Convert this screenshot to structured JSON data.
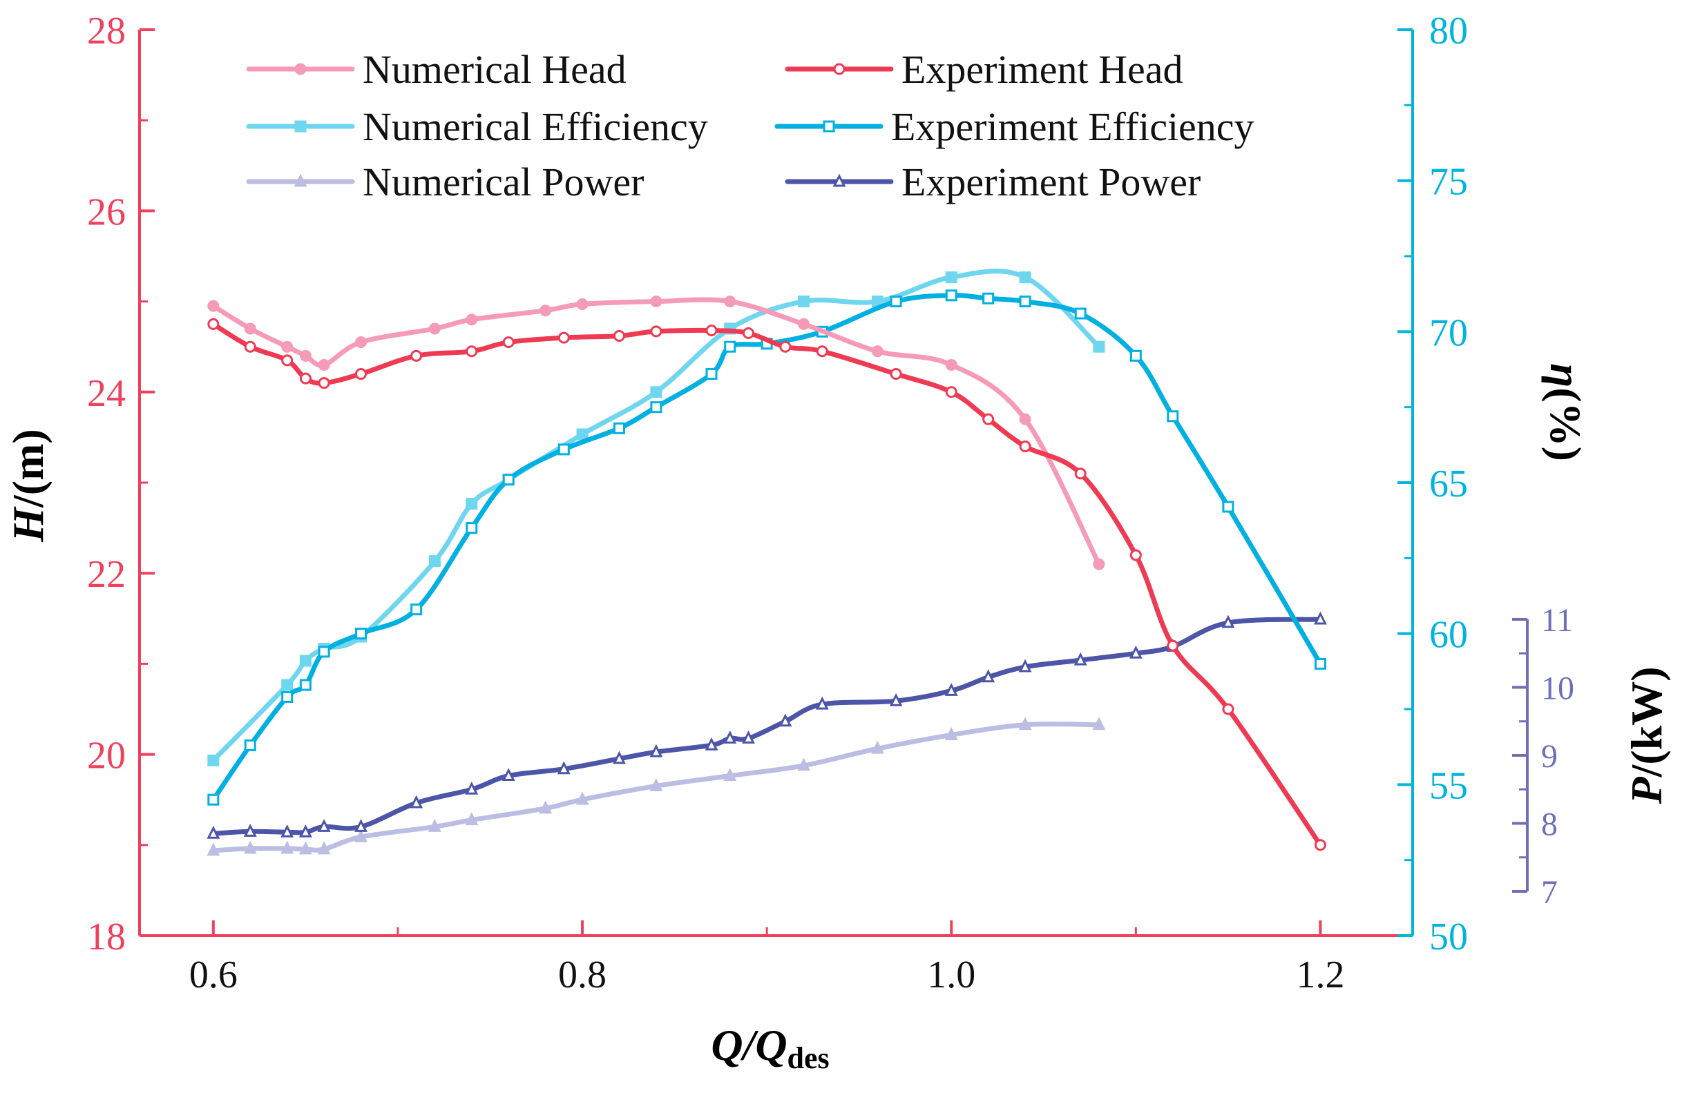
{
  "chart_data": {
    "type": "line",
    "title": "",
    "xlabel": {
      "main": "Q/Q",
      "sub": "des"
    },
    "x_axis": {
      "range": [
        0.56,
        1.25
      ],
      "ticks": [
        0.6,
        0.8,
        1.0,
        1.2
      ],
      "tick_labels": [
        "0.6",
        "0.8",
        "1.0",
        "1.2"
      ]
    },
    "y_left": {
      "label_italic": "H",
      "label_rest": "/(m)",
      "range": [
        18,
        28
      ],
      "ticks": [
        18,
        20,
        22,
        24,
        26,
        28
      ],
      "tick_labels": [
        "18",
        "20",
        "22",
        "24",
        "26",
        "28"
      ],
      "color": "#f0415c"
    },
    "y_right": {
      "label_italic": "η",
      "label_rest": "(%)",
      "range": [
        50,
        80
      ],
      "ticks": [
        50,
        55,
        60,
        65,
        70,
        75,
        80
      ],
      "tick_labels": [
        "50",
        "55",
        "60",
        "65",
        "70",
        "75",
        "80"
      ],
      "color": "#00b4de"
    },
    "y_power": {
      "label_italic": "P",
      "label_rest": "/(kW)",
      "range": [
        7,
        11
      ],
      "ticks": [
        7,
        8,
        9,
        10,
        11
      ],
      "tick_labels": [
        "7",
        "8",
        "9",
        "10",
        "11"
      ],
      "color": "#6d6fb8"
    },
    "legend": {
      "placement": "top"
    },
    "series": [
      {
        "name": "Numerical Head",
        "axis": "left",
        "color": "#f59bb8",
        "marker": "circle-filled",
        "x": [
          0.6,
          0.62,
          0.64,
          0.65,
          0.66,
          0.68,
          0.72,
          0.74,
          0.78,
          0.8,
          0.84,
          0.88,
          0.92,
          0.96,
          1.0,
          1.04,
          1.08
        ],
        "y": [
          24.95,
          24.7,
          24.5,
          24.4,
          24.3,
          24.55,
          24.7,
          24.8,
          24.9,
          24.97,
          25.0,
          25.0,
          24.75,
          24.45,
          24.3,
          23.7,
          22.1
        ]
      },
      {
        "name": "Experiment Head",
        "axis": "left",
        "color": "#ee3a52",
        "marker": "circle-open",
        "x": [
          0.6,
          0.62,
          0.64,
          0.65,
          0.66,
          0.68,
          0.71,
          0.74,
          0.76,
          0.79,
          0.82,
          0.84,
          0.87,
          0.89,
          0.91,
          0.93,
          0.97,
          1.0,
          1.02,
          1.04,
          1.07,
          1.1,
          1.12,
          1.15,
          1.2
        ],
        "y": [
          24.75,
          24.5,
          24.35,
          24.15,
          24.1,
          24.2,
          24.4,
          24.45,
          24.55,
          24.6,
          24.62,
          24.67,
          24.68,
          24.65,
          24.5,
          24.45,
          24.2,
          24.0,
          23.7,
          23.4,
          23.1,
          22.2,
          21.2,
          20.5,
          19.0
        ]
      },
      {
        "name": "Numerical Efficiency",
        "axis": "right",
        "color": "#6fd6ef",
        "marker": "square-filled",
        "x": [
          0.6,
          0.64,
          0.65,
          0.66,
          0.68,
          0.72,
          0.74,
          0.76,
          0.8,
          0.84,
          0.88,
          0.92,
          0.96,
          1.0,
          1.04,
          1.08
        ],
        "y": [
          55.8,
          58.3,
          59.1,
          59.5,
          59.9,
          62.4,
          64.3,
          65.1,
          66.6,
          68.0,
          70.1,
          71.0,
          71.0,
          71.8,
          71.8,
          69.5
        ]
      },
      {
        "name": "Experiment Efficiency",
        "axis": "right",
        "color": "#00b0e0",
        "marker": "square-open",
        "x": [
          0.6,
          0.62,
          0.64,
          0.65,
          0.66,
          0.68,
          0.71,
          0.74,
          0.76,
          0.79,
          0.82,
          0.84,
          0.87,
          0.88,
          0.9,
          0.93,
          0.97,
          1.0,
          1.02,
          1.04,
          1.07,
          1.1,
          1.12,
          1.15,
          1.2
        ],
        "y": [
          54.5,
          56.3,
          57.9,
          58.3,
          59.4,
          60.0,
          60.8,
          63.5,
          65.1,
          66.1,
          66.8,
          67.5,
          68.6,
          69.5,
          69.6,
          70.0,
          71.0,
          71.2,
          71.1,
          71.0,
          70.6,
          69.2,
          67.2,
          64.2,
          59.0
        ]
      },
      {
        "name": "Numerical Power",
        "axis": "power",
        "color": "#bcbde2",
        "marker": "triangle-filled",
        "x": [
          0.6,
          0.62,
          0.64,
          0.65,
          0.66,
          0.68,
          0.72,
          0.74,
          0.78,
          0.8,
          0.84,
          0.88,
          0.92,
          0.96,
          1.0,
          1.04,
          1.08
        ],
        "y": [
          7.6,
          7.63,
          7.63,
          7.62,
          7.62,
          7.8,
          7.95,
          8.05,
          8.22,
          8.35,
          8.55,
          8.7,
          8.85,
          9.1,
          9.3,
          9.45,
          9.45
        ]
      },
      {
        "name": "Experiment Power",
        "axis": "power",
        "color": "#4d55a8",
        "marker": "triangle-open",
        "x": [
          0.6,
          0.62,
          0.64,
          0.65,
          0.66,
          0.68,
          0.71,
          0.74,
          0.76,
          0.79,
          0.82,
          0.84,
          0.87,
          0.88,
          0.89,
          0.91,
          0.93,
          0.97,
          1.0,
          1.02,
          1.04,
          1.07,
          1.1,
          1.12,
          1.15,
          1.2
        ],
        "y": [
          7.85,
          7.88,
          7.87,
          7.87,
          7.95,
          7.95,
          8.3,
          8.5,
          8.7,
          8.8,
          8.95,
          9.05,
          9.15,
          9.25,
          9.25,
          9.5,
          9.75,
          9.8,
          9.95,
          10.15,
          10.3,
          10.4,
          10.5,
          10.6,
          10.95,
          11.0
        ]
      }
    ]
  }
}
